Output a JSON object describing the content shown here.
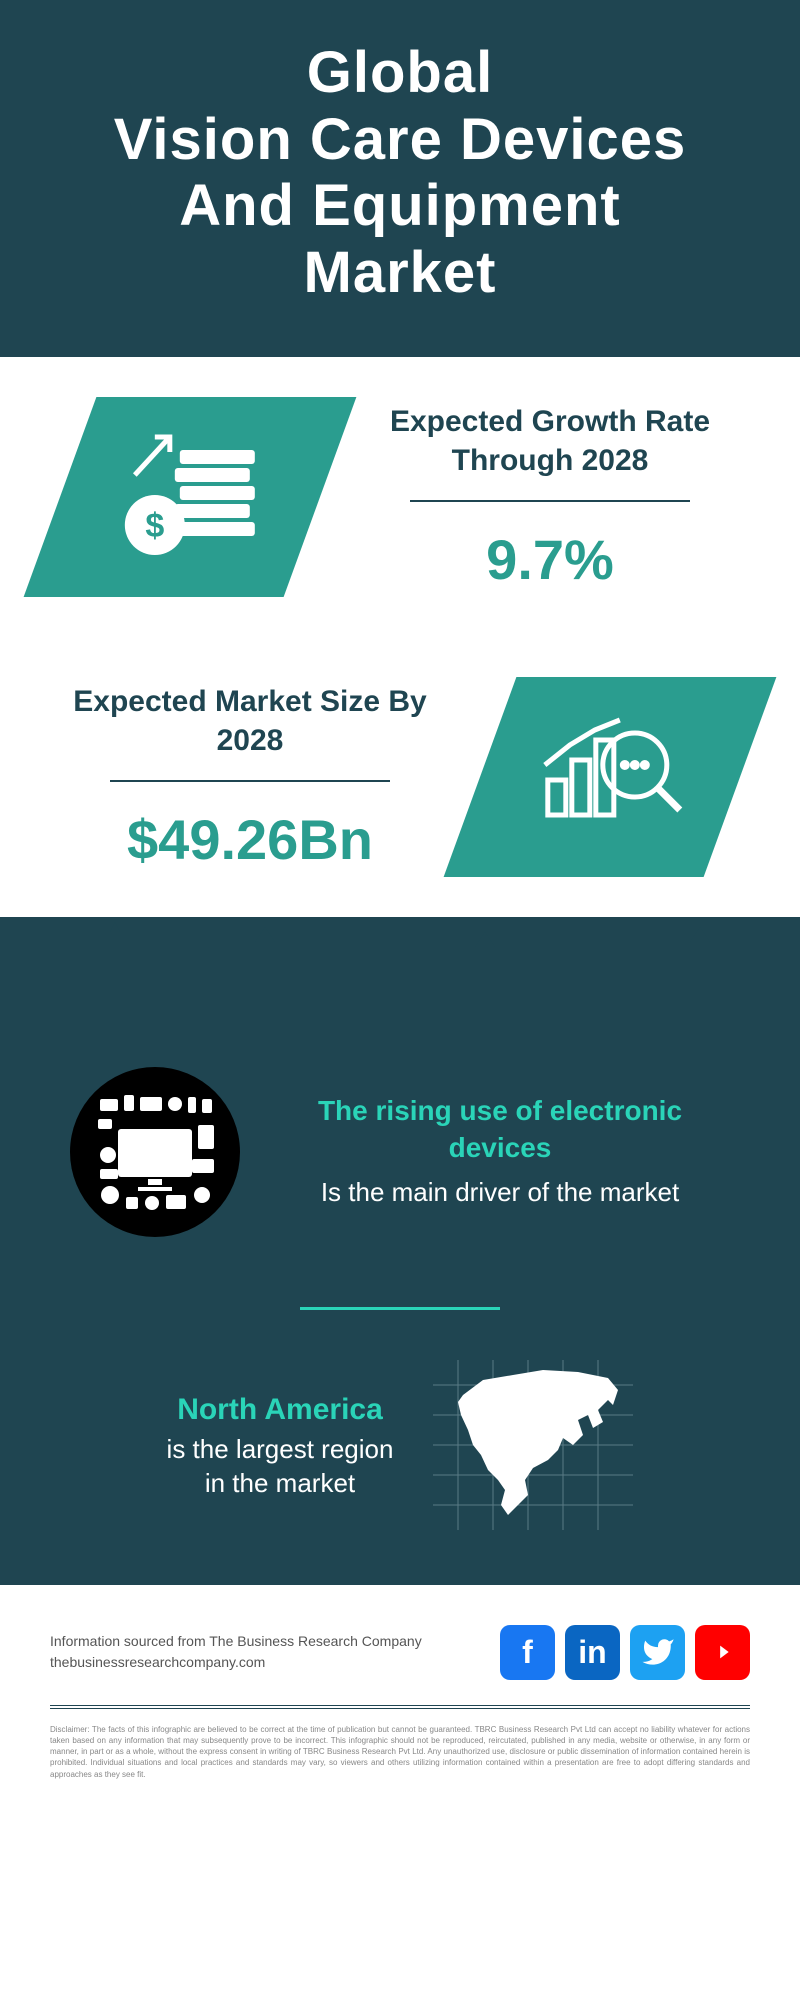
{
  "colors": {
    "header_bg": "#1f4551",
    "teal": "#2a9d8f",
    "bright_teal": "#2ad4b8",
    "white": "#ffffff",
    "dark_text": "#1f4551",
    "facebook": "#1877f2",
    "linkedin": "#0a66c2",
    "twitter": "#1da1f2",
    "youtube": "#ff0000"
  },
  "header": {
    "title": "Global\nVision Care Devices\nAnd Equipment\nMarket"
  },
  "stats": [
    {
      "label": "Expected Growth Rate Through 2028",
      "value": "9.7%",
      "icon": "growth-coins"
    },
    {
      "label": "Expected Market Size By 2028",
      "value": "$49.26Bn",
      "icon": "chart-magnify"
    }
  ],
  "driver": {
    "headline": "The rising use of electronic devices",
    "sub": "Is the main driver of the market"
  },
  "region": {
    "headline": "North America",
    "sub": "is the largest region\nin the market"
  },
  "footer": {
    "source1": "Information sourced from The Business Research Company",
    "source2": "thebusinessresearchcompany.com",
    "disclaimer": "Disclaimer: The facts of this infographic are believed to be correct at the time of publication but cannot be guaranteed. TBRC Business Research Pvt Ltd can accept no liability whatever for actions taken based on any information that may subsequently prove to be incorrect. This infographic should not be reproduced, reircutated, published in any media, website or otherwise, in any form or manner, in part or as a whole, without the express consent in writing of TBRC Business Research Pvt Ltd. Any unauthorized use, disclosure or public dissemination of information contained herein is prohibited. Individual situations and local practices and standards may vary, so viewers and others utilizing information contained within a presentation are free to adopt differing standards and approaches as they see fit."
  }
}
